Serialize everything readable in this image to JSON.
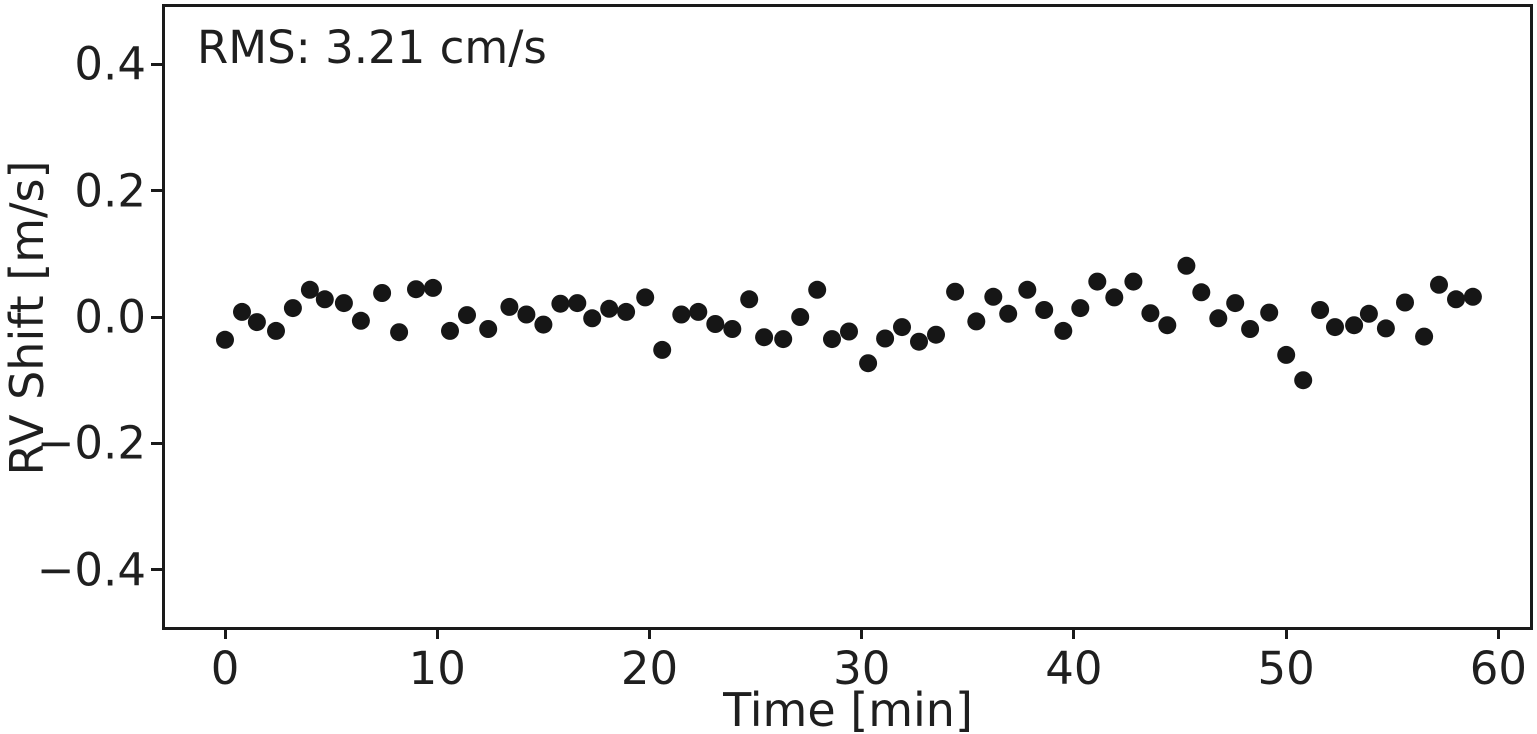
{
  "chart_data": {
    "type": "scatter",
    "title": "",
    "xlabel": "Time [min]",
    "ylabel": "RV Shift [m/s]",
    "annotation": "RMS: 3.21 cm/s",
    "rms_cm_per_s": 3.21,
    "xlim": [
      -2.97,
      61.63
    ],
    "ylim": [
      -0.495,
      0.495
    ],
    "grid": false,
    "legend": false,
    "marker_color": "#161616",
    "marker_radius_px": 9,
    "xticks": {
      "values": [
        0,
        10,
        20,
        30,
        40,
        50,
        60
      ],
      "labels": [
        "0",
        "10",
        "20",
        "30",
        "40",
        "50",
        "60"
      ]
    },
    "yticks": {
      "values": [
        -0.4,
        -0.2,
        0.0,
        0.2,
        0.4
      ],
      "labels": [
        "−0.4",
        "−0.2",
        "0.0",
        "0.2",
        "0.4"
      ]
    },
    "series": [
      {
        "name": "RV shift",
        "x": [
          0.0,
          0.8,
          1.5,
          2.4,
          3.2,
          4.0,
          4.7,
          5.6,
          6.4,
          7.4,
          8.2,
          9.0,
          9.8,
          10.6,
          11.4,
          12.4,
          13.4,
          14.2,
          15.0,
          15.8,
          16.6,
          17.3,
          18.1,
          18.9,
          19.8,
          20.6,
          21.5,
          22.3,
          23.1,
          23.9,
          24.7,
          25.4,
          26.3,
          27.1,
          27.9,
          28.6,
          29.4,
          30.3,
          31.1,
          31.9,
          32.7,
          33.5,
          34.4,
          35.4,
          36.2,
          36.9,
          37.8,
          38.6,
          39.5,
          40.3,
          41.1,
          41.9,
          42.8,
          43.6,
          44.4,
          45.3,
          46.0,
          46.8,
          47.6,
          48.3,
          49.2,
          50.0,
          50.8,
          51.6,
          52.3,
          53.2,
          53.9,
          54.7,
          55.6,
          56.5,
          57.2,
          58.0,
          58.8
        ],
        "y": [
          -0.036,
          0.008,
          -0.008,
          -0.022,
          0.014,
          0.043,
          0.028,
          0.022,
          -0.006,
          0.038,
          -0.024,
          0.044,
          0.046,
          -0.022,
          0.003,
          -0.019,
          0.016,
          0.004,
          -0.012,
          0.021,
          0.022,
          -0.002,
          0.013,
          0.008,
          0.031,
          -0.052,
          0.004,
          0.008,
          -0.011,
          -0.019,
          0.028,
          -0.032,
          -0.035,
          0.0,
          0.043,
          -0.035,
          -0.023,
          -0.073,
          -0.034,
          -0.016,
          -0.039,
          -0.028,
          0.04,
          -0.007,
          0.032,
          0.005,
          0.043,
          0.011,
          -0.022,
          0.014,
          0.056,
          0.031,
          0.056,
          0.006,
          -0.013,
          0.081,
          0.039,
          -0.002,
          0.022,
          -0.019,
          0.007,
          -0.06,
          -0.1,
          0.011,
          -0.016,
          -0.013,
          0.005,
          -0.018,
          0.023,
          -0.031,
          0.051,
          0.028,
          0.032
        ]
      }
    ]
  }
}
